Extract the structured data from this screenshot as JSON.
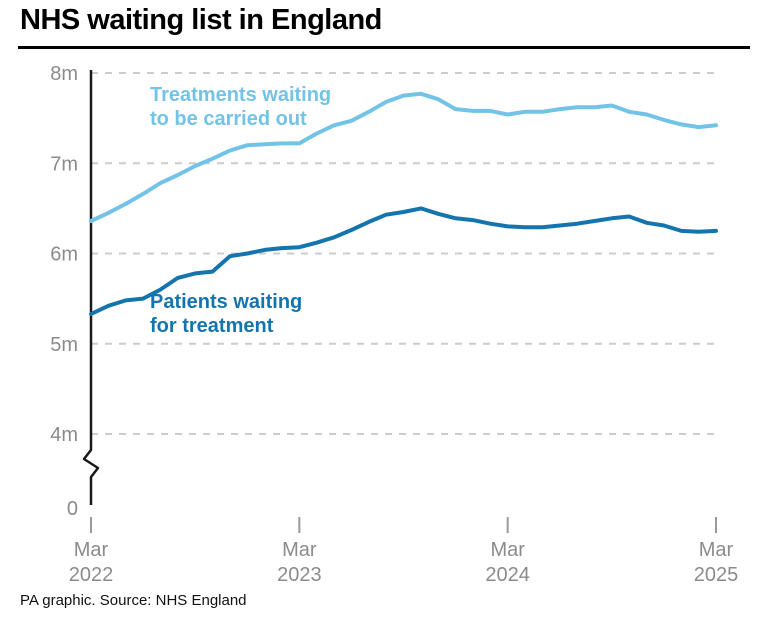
{
  "title": "NHS waiting list in England",
  "footer": "PA graphic. Source: NHS England",
  "colors": {
    "treatments": "#72c3e6",
    "patients": "#1475ae",
    "grid": "#cccccc",
    "axis": "#1a1a1a",
    "tick": "#9a9a9a",
    "tick_label": "#8b8b8b",
    "title": "#000000"
  },
  "chart_data": {
    "type": "line",
    "title": "NHS waiting list in England",
    "xlabel": "",
    "ylabel": "",
    "unit": "millions",
    "ylim": [
      4,
      8
    ],
    "axis_break_to_zero": true,
    "grid": "dashed-horizontal",
    "legend_position": "inline-labels",
    "y_gridlines": [
      8,
      7,
      6,
      5,
      4
    ],
    "y_tick_labels": [
      {
        "label": "8m",
        "value": 8
      },
      {
        "label": "7m",
        "value": 7
      },
      {
        "label": "6m",
        "value": 6
      },
      {
        "label": "5m",
        "value": 5
      },
      {
        "label": "4m",
        "value": 4
      },
      {
        "label": "0",
        "value": 0
      }
    ],
    "x_ticks": [
      {
        "index": 0,
        "month": "Mar",
        "year": "2022"
      },
      {
        "index": 12,
        "month": "Mar",
        "year": "2023"
      },
      {
        "index": 24,
        "month": "Mar",
        "year": "2024"
      },
      {
        "index": 36,
        "month": "Mar",
        "year": "2025"
      }
    ],
    "x": [
      "Mar 2022",
      "Apr 2022",
      "May 2022",
      "Jun 2022",
      "Jul 2022",
      "Aug 2022",
      "Sep 2022",
      "Oct 2022",
      "Nov 2022",
      "Dec 2022",
      "Jan 2023",
      "Feb 2023",
      "Mar 2023",
      "Apr 2023",
      "May 2023",
      "Jun 2023",
      "Jul 2023",
      "Aug 2023",
      "Sep 2023",
      "Oct 2023",
      "Nov 2023",
      "Dec 2023",
      "Jan 2024",
      "Feb 2024",
      "Mar 2024",
      "Apr 2024",
      "May 2024",
      "Jun 2024",
      "Jul 2024",
      "Aug 2024",
      "Sep 2024",
      "Oct 2024",
      "Nov 2024",
      "Dec 2024",
      "Jan 2025",
      "Feb 2025",
      "Mar 2025"
    ],
    "series": [
      {
        "name": "Treatments waiting to be carried out",
        "label_lines": [
          "Treatments waiting",
          "to be carried out"
        ],
        "color": "#72c3e6",
        "values": [
          6.36,
          6.45,
          6.55,
          6.66,
          6.78,
          6.87,
          6.97,
          7.05,
          7.14,
          7.2,
          7.21,
          7.22,
          7.22,
          7.33,
          7.42,
          7.47,
          7.57,
          7.68,
          7.75,
          7.77,
          7.71,
          7.6,
          7.58,
          7.58,
          7.54,
          7.57,
          7.57,
          7.6,
          7.62,
          7.62,
          7.64,
          7.57,
          7.54,
          7.48,
          7.43,
          7.4,
          7.42
        ]
      },
      {
        "name": "Patients waiting for treatment",
        "label_lines": [
          "Patients waiting",
          "for treatment"
        ],
        "color": "#1475ae",
        "values": [
          5.33,
          5.42,
          5.48,
          5.5,
          5.6,
          5.73,
          5.78,
          5.8,
          5.97,
          6.0,
          6.04,
          6.06,
          6.07,
          6.12,
          6.18,
          6.26,
          6.35,
          6.43,
          6.46,
          6.5,
          6.44,
          6.39,
          6.37,
          6.33,
          6.3,
          6.29,
          6.29,
          6.31,
          6.33,
          6.36,
          6.39,
          6.41,
          6.34,
          6.31,
          6.25,
          6.24,
          6.25
        ]
      }
    ]
  }
}
